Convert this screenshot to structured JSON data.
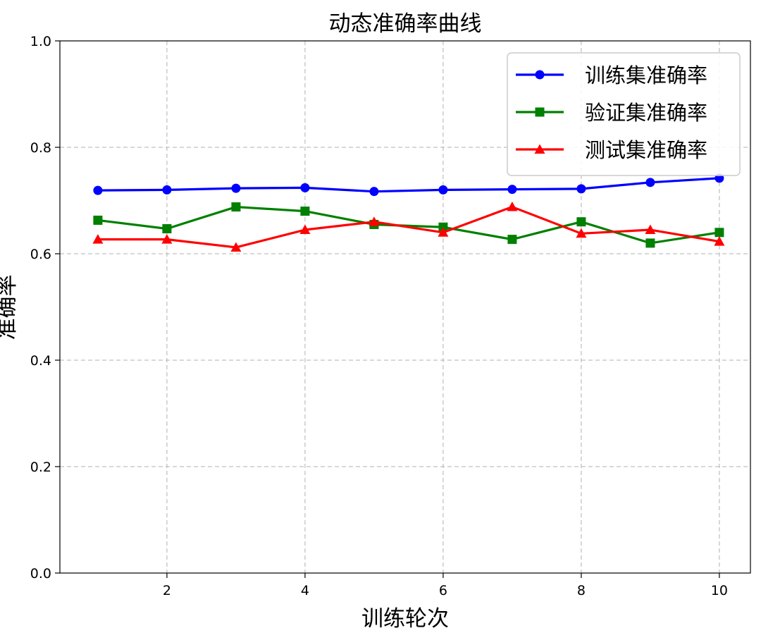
{
  "chart_data": {
    "type": "line",
    "title": "动态准确率曲线",
    "xlabel": "训练轮次",
    "ylabel": "准确率",
    "xlim": [
      0.45,
      10.45
    ],
    "ylim": [
      0.0,
      1.0
    ],
    "x_ticks": [
      2,
      4,
      6,
      8,
      10
    ],
    "y_ticks": [
      0.0,
      0.2,
      0.4,
      0.6,
      0.8,
      1.0
    ],
    "x_tick_labels": [
      "2",
      "4",
      "6",
      "8",
      "10"
    ],
    "y_tick_labels": [
      "0.0",
      "0.2",
      "0.4",
      "0.6",
      "0.8",
      "1.0"
    ],
    "grid": true,
    "legend_position": "top-right",
    "x": [
      1,
      2,
      3,
      4,
      5,
      6,
      7,
      8,
      9,
      10
    ],
    "series": [
      {
        "name": "训练集准确率",
        "color": "#0000ff",
        "marker": "circle",
        "values": [
          0.719,
          0.72,
          0.723,
          0.724,
          0.717,
          0.72,
          0.721,
          0.722,
          0.734,
          0.742
        ]
      },
      {
        "name": "验证集准确率",
        "color": "#008000",
        "marker": "square",
        "values": [
          0.663,
          0.647,
          0.688,
          0.68,
          0.655,
          0.65,
          0.627,
          0.66,
          0.62,
          0.64
        ]
      },
      {
        "name": "测试集准确率",
        "color": "#ff0000",
        "marker": "triangle",
        "values": [
          0.627,
          0.627,
          0.612,
          0.645,
          0.66,
          0.64,
          0.688,
          0.638,
          0.645,
          0.623
        ]
      }
    ]
  }
}
